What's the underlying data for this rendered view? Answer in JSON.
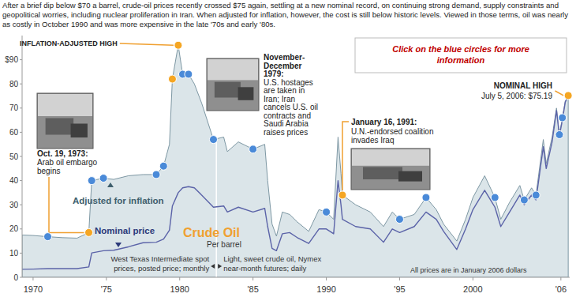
{
  "chart_data": {
    "type": "line",
    "title": "Crude Oil",
    "y_label": "Per barrel",
    "subtitle": "After a brief dip below $70 a barrel, crude-oil prices recently crossed $75 again, settling at a new nominal record, on continuing strong demand, supply constraints and geopolitical worries, including nuclear proliferation in Iran. When adjusted for inflation, however, the cost is still below historic levels. Viewed in those terms, oil was nearly as costly in October 1990 and was more expensive in the late '70s and early '80s.",
    "note": "All prices are in January 2006 dollars",
    "x": [
      1969.25,
      1970.0,
      1971.0,
      1972.0,
      1973.0,
      1973.8,
      1974.0,
      1974.8,
      1975.5,
      1976.5,
      1977.5,
      1978.4,
      1978.9,
      1979.3,
      1979.5,
      1979.9,
      1980.2,
      1980.6,
      1981.0,
      1981.5,
      1982.3,
      1983.0,
      1983.25,
      1984.0,
      1985.0,
      1985.8,
      1986.0,
      1986.3,
      1986.6,
      1987.0,
      1987.5,
      1988.0,
      1988.8,
      1989.5,
      1990.0,
      1990.5,
      1990.8,
      1991.0,
      1991.1,
      1992.0,
      1993.0,
      1993.9,
      1994.5,
      1995.0,
      1996.0,
      1996.8,
      1997.5,
      1998.0,
      1998.9,
      1999.5,
      2000.0,
      2000.8,
      2001.5,
      2001.9,
      2002.5,
      2003.2,
      2003.5,
      2004.0,
      2004.3,
      2004.8,
      2005.0,
      2005.4,
      2005.7,
      2005.9,
      2006.1,
      2006.3,
      2006.5
    ],
    "series": [
      {
        "name": "Adjusted for inflation",
        "type": "area",
        "color": "#dbe5e9",
        "values": [
          17.5,
          17.3,
          16.8,
          16.4,
          16.2,
          18.5,
          40,
          41,
          40.5,
          42,
          42.5,
          42.5,
          46,
          55,
          82,
          96,
          84,
          84,
          80,
          72,
          57,
          58,
          52,
          56,
          53,
          55,
          40,
          22,
          17,
          27,
          26,
          23,
          19,
          28,
          27,
          24,
          58,
          43,
          34,
          30,
          27,
          21,
          27,
          24,
          26,
          33,
          28,
          22,
          15,
          24,
          33,
          42,
          33,
          24,
          31,
          38,
          32,
          37,
          34,
          57,
          47,
          58,
          70,
          59,
          66,
          73,
          74.2
        ]
      },
      {
        "name": "Nominal price",
        "type": "line",
        "color": "#5b63a8",
        "values": [
          3.3,
          3.4,
          3.6,
          3.6,
          3.6,
          4.3,
          10.1,
          11,
          11.2,
          12.6,
          14.3,
          14.5,
          15.8,
          19.5,
          29.5,
          35,
          37,
          37.5,
          37,
          34,
          29,
          29.5,
          27,
          29,
          27,
          28.5,
          21,
          12,
          11,
          18,
          18.5,
          16.5,
          14,
          20,
          20,
          18,
          40,
          30,
          24,
          21,
          20,
          14.5,
          20,
          18.5,
          21,
          27,
          24,
          19,
          11.5,
          20,
          28,
          36,
          29,
          21,
          27,
          34,
          30,
          34,
          32,
          54,
          45,
          56,
          69,
          58.5,
          65,
          72.5,
          75.19
        ]
      }
    ],
    "xlim": [
      1969.25,
      2006.6
    ],
    "xticks": [
      1970,
      {
        "value": 1975,
        "label": "'75"
      },
      1980,
      {
        "value": 1985,
        "label": "'85"
      },
      1990,
      {
        "value": 1995,
        "label": "'95"
      },
      2000,
      {
        "value": 2006,
        "label": "'06"
      }
    ],
    "ylim": [
      0,
      100
    ],
    "yticks": [
      0,
      10,
      20,
      30,
      40,
      50,
      60,
      70,
      80,
      {
        "value": 90,
        "label": "$90"
      }
    ],
    "grid": false,
    "markers": {
      "x": [
        1971.0,
        1973.8,
        1974.0,
        1974.8,
        1978.4,
        1978.9,
        1979.5,
        1979.9,
        1980.2,
        1980.6,
        1982.3,
        1985.0,
        1990.0,
        1991.1,
        1995.0,
        1996.8,
        2001.5,
        2003.5,
        2004.3,
        2005.9,
        2006.1,
        2006.5
      ],
      "y": [
        16.8,
        18.5,
        40,
        41,
        42.5,
        46,
        82,
        96,
        84,
        84,
        57,
        53,
        27,
        34,
        24,
        33,
        33,
        32,
        34,
        59,
        66,
        75.19
      ],
      "colors": [
        "#4a8ad8",
        "#f5a623",
        "#4a8ad8",
        "#4a8ad8",
        "#4a8ad8",
        "#4a8ad8",
        "#f5a623",
        "#f5a623",
        "#4a8ad8",
        "#4a8ad8",
        "#4a8ad8",
        "#4a8ad8",
        "#4a8ad8",
        "#f5a623",
        "#4a8ad8",
        "#4a8ad8",
        "#4a8ad8",
        "#4a8ad8",
        "#4a8ad8",
        "#4a8ad8",
        "#4a8ad8",
        "#f5a623"
      ]
    },
    "source_divider": {
      "x": 1982.5,
      "left": [
        "West Texas Intermediate spot",
        "prices, posted price; monthly"
      ],
      "right": [
        "Light, sweet crude oil, Nymex",
        "near-month futures; daily"
      ]
    },
    "annotations": [
      {
        "heading": [
          "INFLATION-ADJUSTED HIGH"
        ],
        "lines": [],
        "x": 1979.9,
        "y": 96
      },
      {
        "heading": [
          "Oct. 19, 1973:"
        ],
        "lines": [
          "Arab oil embargo",
          "begins"
        ],
        "x": 1973.8,
        "y": 18.5
      },
      {
        "heading": [
          "November-",
          "December",
          "1979:"
        ],
        "lines": [
          "U.S. hostages",
          "are taken in",
          "Iran; Iran",
          "cancels U.S. oil",
          "contracts and",
          "Saudi Arabia",
          "raises prices"
        ]
      },
      {
        "heading": [
          "January 16, 1991:"
        ],
        "lines": [
          "U.N.-endorsed coalition",
          "invades Iraq"
        ],
        "x": 1991.1,
        "y": 34
      },
      {
        "heading": [
          "NOMINAL HIGH"
        ],
        "lines": [
          "July 5, 2006: $75.19"
        ],
        "x": 2006.5,
        "y": 75.19
      },
      {
        "heading": [
          "Click on the blue circles for more",
          "information"
        ],
        "lines": []
      }
    ]
  }
}
